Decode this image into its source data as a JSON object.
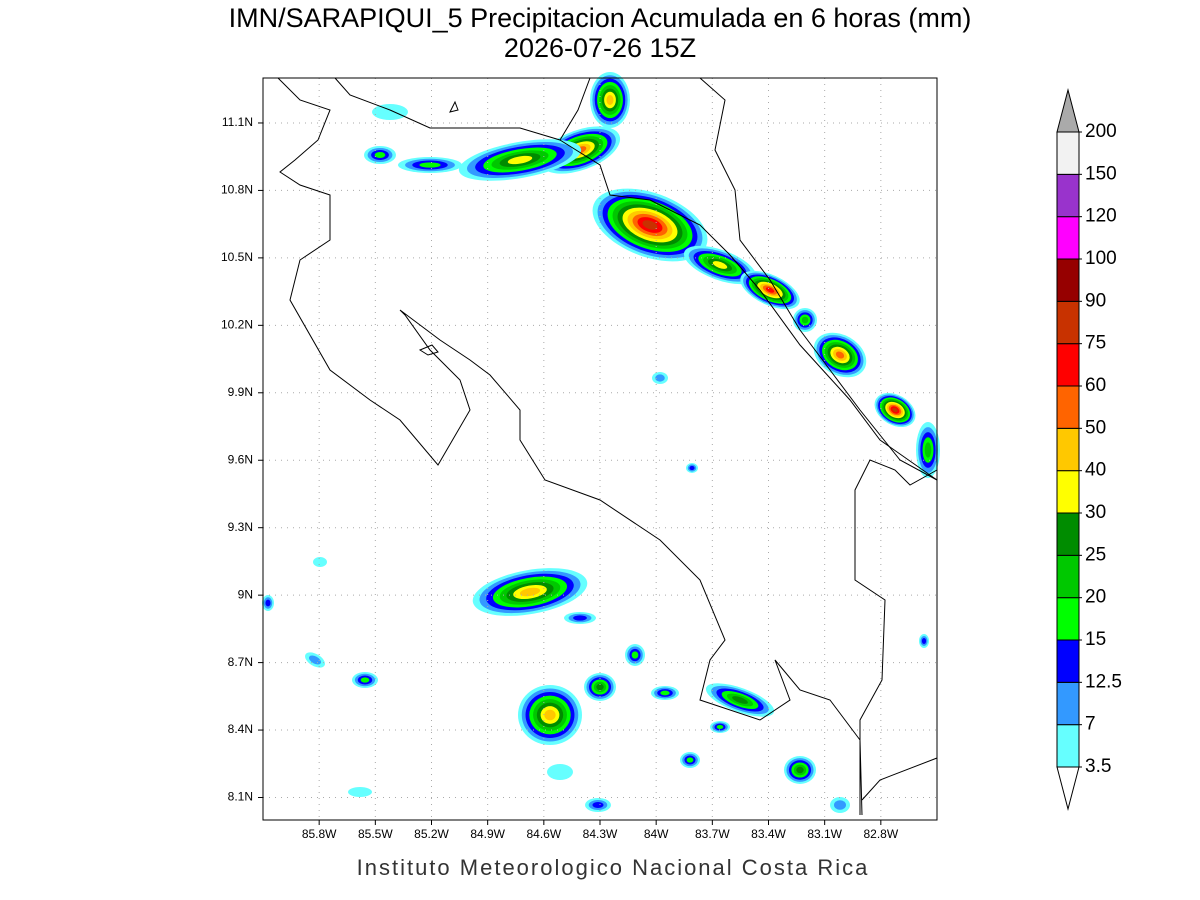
{
  "title": "IMN/SARAPIQUI_5 Precipitacion Acumulada en 6 horas (mm)",
  "subtitle": "2026-07-26 15Z",
  "map": {
    "xlim": [
      -86.1,
      -82.5
    ],
    "ylim": [
      8.0,
      11.3
    ],
    "lat_ticks": [
      {
        "value": 11.1,
        "label": "11.1N"
      },
      {
        "value": 10.8,
        "label": "10.8N"
      },
      {
        "value": 10.5,
        "label": "10.5N"
      },
      {
        "value": 10.2,
        "label": "10.2N"
      },
      {
        "value": 9.9,
        "label": "9.9N"
      },
      {
        "value": 9.6,
        "label": "9.6N"
      },
      {
        "value": 9.3,
        "label": "9.3N"
      },
      {
        "value": 9,
        "label": "9N"
      },
      {
        "value": 8.7,
        "label": "8.7N"
      },
      {
        "value": 8.4,
        "label": "8.4N"
      },
      {
        "value": 8.1,
        "label": "8.1N"
      }
    ],
    "lon_ticks": [
      {
        "value": -85.8,
        "label": "85.8W"
      },
      {
        "value": -85.5,
        "label": "85.5W"
      },
      {
        "value": -85.2,
        "label": "85.2W"
      },
      {
        "value": -84.9,
        "label": "84.9W"
      },
      {
        "value": -84.6,
        "label": "84.6W"
      },
      {
        "value": -84.3,
        "label": "84.3W"
      },
      {
        "value": -84,
        "label": "84W"
      },
      {
        "value": -83.7,
        "label": "83.7W"
      },
      {
        "value": -83.4,
        "label": "83.4W"
      },
      {
        "value": -83.1,
        "label": "83.1W"
      },
      {
        "value": -82.8,
        "label": "82.8W"
      }
    ],
    "grid": true
  },
  "colorbar": {
    "levels": [
      3.5,
      7,
      12.5,
      15,
      20,
      25,
      30,
      40,
      50,
      60,
      75,
      90,
      100,
      120,
      150,
      200
    ],
    "colors": [
      "#ffffff",
      "#66ffff",
      "#3399ff",
      "#0000ff",
      "#00ff00",
      "#00c800",
      "#008c00",
      "#ffff00",
      "#ffc800",
      "#ff6400",
      "#ff0000",
      "#c83200",
      "#960000",
      "#ff00ff",
      "#9933cc",
      "#f2f2f2",
      "#aaaaaa"
    ]
  },
  "footer": "Instituto Meteorologico Nacional Costa Rica"
}
